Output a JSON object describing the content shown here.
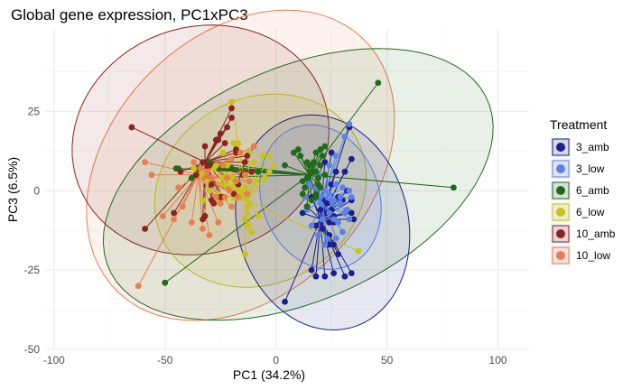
{
  "chart_data": {
    "type": "scatter",
    "title": "Global gene expression, PC1xPC3",
    "xlabel": "PC1 (34.2%)",
    "ylabel": "PC3 (6.5%)",
    "xlim": [
      -104,
      114
    ],
    "ylim": [
      -50,
      51
    ],
    "x_ticks": [
      -100,
      -50,
      0,
      50,
      100
    ],
    "y_ticks": [
      -50,
      -25,
      0,
      25
    ],
    "x_tick_labels": [
      "-100",
      "-50",
      "0",
      "50",
      "100"
    ],
    "y_tick_labels": [
      "-50",
      "-25",
      "0",
      "25"
    ],
    "grid": true,
    "legend": {
      "title": "Treatment",
      "position": "right"
    },
    "series": [
      {
        "name": "3_amb",
        "color": "#1b1f8a",
        "centroid": [
          20,
          -9
        ],
        "ellipse": {
          "cx": 21,
          "cy": -10,
          "rx": 33,
          "ry": 40,
          "angle": 70
        },
        "points": [
          [
            4,
            -35
          ],
          [
            16,
            -25
          ],
          [
            18,
            -27
          ],
          [
            22,
            -27
          ],
          [
            26,
            -26
          ],
          [
            31,
            -27
          ],
          [
            34,
            -26
          ],
          [
            28,
            -20
          ],
          [
            24,
            -17
          ],
          [
            18,
            -11
          ],
          [
            17,
            -3
          ],
          [
            16,
            -2
          ],
          [
            14,
            -5
          ],
          [
            12,
            -7
          ],
          [
            21,
            -3
          ],
          [
            23,
            -7
          ],
          [
            26,
            -10
          ],
          [
            25,
            -6
          ],
          [
            30,
            -3
          ],
          [
            32,
            0
          ],
          [
            34,
            -3
          ],
          [
            34,
            -7
          ],
          [
            35,
            -9
          ],
          [
            31,
            -7
          ],
          [
            26,
            -8
          ],
          [
            24,
            -10
          ],
          [
            21,
            -12
          ],
          [
            24,
            -14
          ],
          [
            26,
            -17
          ],
          [
            28,
            -2
          ],
          [
            25,
            2
          ],
          [
            27,
            6
          ],
          [
            31,
            6
          ],
          [
            34,
            10
          ],
          [
            33,
            20
          ],
          [
            25,
            12
          ],
          [
            22,
            9
          ],
          [
            19,
            4
          ],
          [
            20,
            -6
          ],
          [
            23,
            -4
          ]
        ]
      },
      {
        "name": "3_low",
        "color": "#5b83e6",
        "centroid": [
          21,
          -3
        ],
        "ellipse": {
          "cx": 20,
          "cy": -2,
          "rx": 22,
          "ry": 28,
          "angle": 70
        },
        "points": [
          [
            33,
            21
          ],
          [
            31,
            17
          ],
          [
            27,
            11
          ],
          [
            24,
            8
          ],
          [
            19,
            5
          ],
          [
            15,
            2
          ],
          [
            13,
            -2
          ],
          [
            14,
            -6
          ],
          [
            17,
            -3
          ],
          [
            20,
            -2
          ],
          [
            24,
            -1
          ],
          [
            26,
            -3
          ],
          [
            29,
            -4
          ],
          [
            32,
            -6
          ],
          [
            33,
            -9
          ],
          [
            30,
            -13
          ],
          [
            27,
            -15
          ],
          [
            23,
            -15
          ],
          [
            22,
            -17
          ],
          [
            19,
            -14
          ],
          [
            16,
            -11
          ],
          [
            21,
            -9
          ],
          [
            24,
            -7
          ],
          [
            25,
            -3
          ],
          [
            22,
            0
          ],
          [
            18,
            1
          ],
          [
            20,
            -4
          ],
          [
            26,
            -9
          ],
          [
            28,
            -10
          ],
          [
            29,
            -2
          ],
          [
            31,
            -7
          ],
          [
            34,
            -2
          ],
          [
            33,
            0
          ],
          [
            30,
            1
          ],
          [
            27,
            2
          ]
        ]
      },
      {
        "name": "6_amb",
        "color": "#1e6b1a",
        "centroid": [
          15,
          5
        ],
        "ellipse": {
          "cx": 10,
          "cy": 2,
          "rx": 90,
          "ry": 38,
          "angle": 14
        },
        "points": [
          [
            46,
            34
          ],
          [
            80,
            1
          ],
          [
            -50,
            -29
          ],
          [
            -45,
            7
          ],
          [
            -44,
            7
          ],
          [
            -35,
            7
          ],
          [
            -38,
            4
          ],
          [
            -30,
            9
          ],
          [
            -28,
            8
          ],
          [
            -26,
            7
          ],
          [
            -24,
            7
          ],
          [
            -20,
            7
          ],
          [
            -8,
            6
          ],
          [
            -3,
            6
          ],
          [
            4,
            8
          ],
          [
            8,
            12
          ],
          [
            10,
            13
          ],
          [
            11,
            11
          ],
          [
            14,
            9
          ],
          [
            15,
            8
          ],
          [
            16,
            6
          ],
          [
            14,
            4
          ],
          [
            12,
            3
          ],
          [
            13,
            1
          ],
          [
            12,
            -1
          ],
          [
            14,
            -5
          ],
          [
            16,
            -3
          ],
          [
            18,
            -1
          ],
          [
            19,
            2
          ],
          [
            19,
            4
          ],
          [
            18,
            6
          ],
          [
            17,
            9
          ],
          [
            18,
            12
          ],
          [
            20,
            13
          ],
          [
            22,
            14
          ],
          [
            21,
            11
          ],
          [
            20,
            8
          ],
          [
            22,
            5
          ],
          [
            20,
            1
          ],
          [
            18,
            -2
          ]
        ]
      },
      {
        "name": "6_low",
        "color": "#c9c218",
        "centroid": [
          -13,
          -3
        ],
        "ellipse": {
          "cx": -7,
          "cy": 0,
          "rx": 48,
          "ry": 30,
          "angle": 8
        },
        "points": [
          [
            37,
            -19
          ],
          [
            -14,
            -20
          ],
          [
            -11,
            -13
          ],
          [
            -13,
            -11
          ],
          [
            -14,
            -9
          ],
          [
            -13,
            -5
          ],
          [
            -12,
            -4
          ],
          [
            -16,
            -1
          ],
          [
            -19,
            -2
          ],
          [
            -20,
            1
          ],
          [
            -22,
            5
          ],
          [
            -24,
            4
          ],
          [
            -27,
            8
          ],
          [
            -28,
            7
          ],
          [
            -32,
            6
          ],
          [
            -34,
            5
          ],
          [
            -37,
            7
          ],
          [
            -31,
            3
          ],
          [
            -30,
            0
          ],
          [
            -33,
            -3
          ],
          [
            -28,
            -3
          ],
          [
            -26,
            -1
          ],
          [
            -23,
            2
          ],
          [
            -20,
            4
          ],
          [
            -17,
            0
          ],
          [
            -14,
            1
          ],
          [
            -9,
            3
          ],
          [
            -5,
            4
          ],
          [
            -3,
            6
          ],
          [
            -1,
            8
          ],
          [
            -3,
            11
          ],
          [
            -6,
            11
          ],
          [
            -10,
            9
          ],
          [
            -12,
            12
          ],
          [
            -17,
            15
          ],
          [
            -19,
            15
          ],
          [
            -24,
            12
          ],
          [
            -22,
            8
          ],
          [
            -20,
            28
          ],
          [
            -8,
            -8
          ]
        ]
      },
      {
        "name": "10_amb",
        "color": "#8b2320",
        "centroid": [
          -32,
          9
        ],
        "ellipse": {
          "cx": -34,
          "cy": 16,
          "rx": 58,
          "ry": 36,
          "angle": 5
        },
        "points": [
          [
            -65,
            20
          ],
          [
            -59,
            -12
          ],
          [
            -46,
            -7
          ],
          [
            -43,
            6
          ],
          [
            -36,
            5
          ],
          [
            -33,
            9
          ],
          [
            -32,
            14
          ],
          [
            -30,
            8
          ],
          [
            -29,
            2
          ],
          [
            -28,
            -4
          ],
          [
            -32,
            -8
          ],
          [
            -33,
            -9
          ],
          [
            -24,
            -2
          ],
          [
            -19,
            -1
          ],
          [
            -17,
            2
          ],
          [
            -15,
            5
          ],
          [
            -14,
            9
          ],
          [
            -13,
            11
          ],
          [
            -18,
            13
          ],
          [
            -23,
            15
          ],
          [
            -26,
            16
          ],
          [
            -27,
            16
          ],
          [
            -25,
            18
          ],
          [
            -20,
            23
          ],
          [
            -22,
            20
          ],
          [
            -20,
            26
          ],
          [
            -18,
            12
          ],
          [
            -25,
            -2
          ],
          [
            -29,
            -3
          ],
          [
            -11,
            6
          ]
        ]
      },
      {
        "name": "10_low",
        "color": "#e87f4d",
        "centroid": [
          -35,
          5
        ],
        "ellipse": {
          "cx": -16,
          "cy": 8,
          "rx": 72,
          "ry": 45,
          "angle": 20
        },
        "points": [
          [
            -62,
            -30
          ],
          [
            -59,
            9
          ],
          [
            -56,
            5
          ],
          [
            -51,
            -8
          ],
          [
            -46,
            -9
          ],
          [
            -37,
            9
          ],
          [
            -34,
            7
          ],
          [
            -31,
            6
          ],
          [
            -29,
            4
          ],
          [
            -27,
            -2
          ],
          [
            -25,
            -4
          ],
          [
            -23,
            -2
          ],
          [
            -21,
            0
          ],
          [
            -18,
            3
          ],
          [
            -14,
            5
          ],
          [
            -12,
            3
          ],
          [
            -13,
            -1
          ],
          [
            -17,
            -2
          ],
          [
            -20,
            -5
          ],
          [
            -26,
            -10
          ],
          [
            -30,
            -14
          ],
          [
            -33,
            -12
          ],
          [
            -38,
            -10
          ],
          [
            -42,
            -5
          ],
          [
            -44,
            1
          ],
          [
            -22,
            4
          ],
          [
            -24,
            8
          ],
          [
            -20,
            10
          ],
          [
            -16,
            12
          ],
          [
            -10,
            14
          ]
        ]
      }
    ]
  }
}
